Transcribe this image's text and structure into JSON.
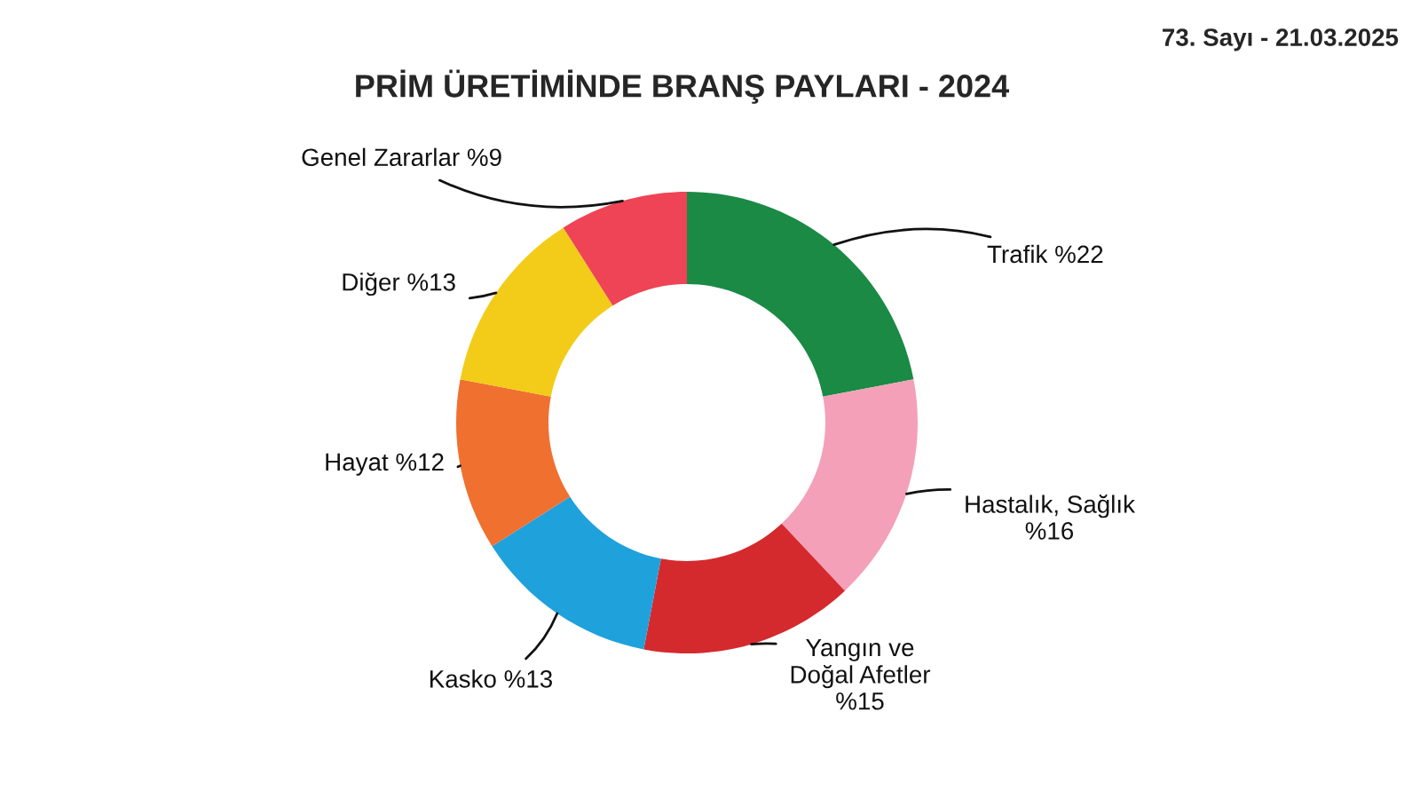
{
  "chart_data": {
    "type": "donut",
    "title": "PRİM ÜRETİMİNDE BRANŞ PAYLARI - 2024",
    "categories": [
      "Trafik",
      "Hastalık, Sağlık",
      "Yangın ve Doğal Afetler",
      "Kasko",
      "Hayat",
      "Diğer",
      "Genel Zararlar"
    ],
    "values": [
      22,
      16,
      15,
      13,
      12,
      13,
      9
    ],
    "value_labels": [
      "%22",
      "%16",
      "%15",
      "%13",
      "%12",
      "%13",
      "%9"
    ],
    "colors": [
      "#1a8a45",
      "#f4a0b8",
      "#d42a2e",
      "#1fa1dc",
      "#f07030",
      "#f2cc18",
      "#ee4455"
    ],
    "annotations": [
      "73. Sayı - 21.03.2025"
    ],
    "legend": false
  }
}
